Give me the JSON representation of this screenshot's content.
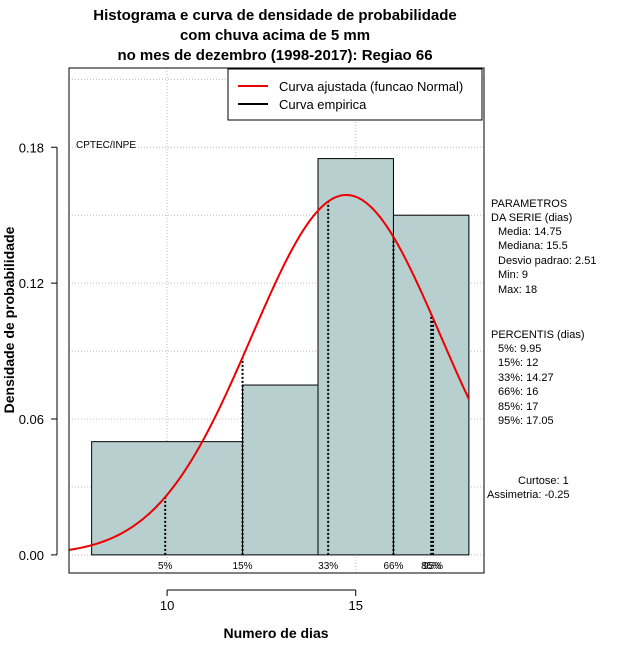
{
  "chart_data": {
    "type": "histogram",
    "title_lines": [
      "Histograma e curva de densidade de probabilidade",
      "com chuva acima de 5 mm",
      "no mes de dezembro (1998-2017): Regiao 66"
    ],
    "xlabel": "Numero de dias",
    "ylabel": "Densidade de probabilidade",
    "xlim": [
      7.4,
      18.4
    ],
    "ylim": [
      -0.008,
      0.215
    ],
    "x_ticks": [
      10,
      15
    ],
    "y_ticks": [
      0.0,
      0.06,
      0.12,
      0.18
    ],
    "y_tick_labels": [
      "0.00",
      "0.06",
      "0.12",
      "0.18"
    ],
    "grid": true,
    "bins": [
      {
        "x0": 8,
        "x1": 12,
        "density": 0.05
      },
      {
        "x0": 12,
        "x1": 14,
        "density": 0.075
      },
      {
        "x0": 14,
        "x1": 16,
        "density": 0.175
      },
      {
        "x0": 16,
        "x1": 18,
        "density": 0.15
      }
    ],
    "bar_color": "#b7cfcf",
    "fitted_curve": {
      "name": "Curva ajustada (funcao Normal)",
      "mean": 14.75,
      "sd": 2.51,
      "color": "#ee0000"
    },
    "empirical_curve": {
      "name": "Curva empirica",
      "color": "#000000"
    },
    "legend_position": "top-right",
    "source_label": "CPTEC/INPE",
    "percentiles": [
      {
        "label": "5%",
        "x": 9.95
      },
      {
        "label": "15%",
        "x": 12
      },
      {
        "label": "33%",
        "x": 14.27
      },
      {
        "label": "66%",
        "x": 16
      },
      {
        "label": "85%",
        "x": 17
      },
      {
        "label": "95%",
        "x": 17.05
      }
    ],
    "parameters": {
      "heading": [
        "PARAMETROS",
        "DA SERIE (dias)"
      ],
      "lines": [
        "Media: 14.75",
        "Mediana: 15.5",
        "Desvio padrao: 2.51",
        "Min: 9",
        "Max: 18"
      ]
    },
    "percentile_block": {
      "heading": "PERCENTIS (dias)",
      "lines": [
        "5%: 9.95",
        "15%: 12",
        "33%: 14.27",
        "66%: 16",
        "85%: 17",
        "95%: 17.05"
      ]
    },
    "shape": {
      "lines": [
        "Curtose: 1",
        "Assimetria: -0.25"
      ]
    }
  }
}
